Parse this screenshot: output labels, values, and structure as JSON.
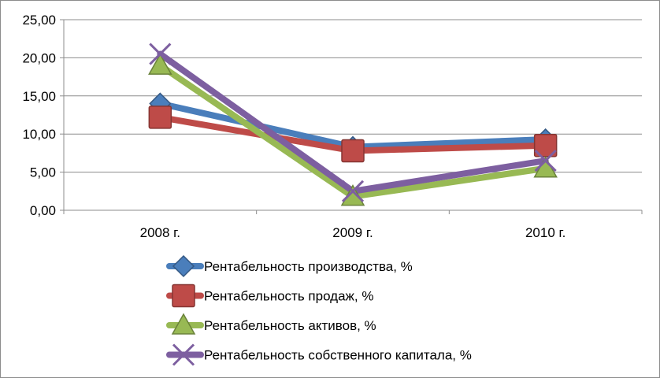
{
  "chart_data": {
    "type": "line",
    "title": "",
    "xlabel": "",
    "ylabel": "",
    "categories": [
      "2008 г.",
      "2009 г.",
      "2010 г."
    ],
    "ylim": [
      0,
      25
    ],
    "yticks": [
      "0,00",
      "5,00",
      "10,00",
      "15,00",
      "20,00",
      "25,00"
    ],
    "grid": "horizontal",
    "legend_position": "bottom",
    "series": [
      {
        "name": "Рентабельность производства, %",
        "values": [
          14.0,
          8.3,
          9.3
        ],
        "color": "#4a7ebb",
        "marker": "diamond"
      },
      {
        "name": "Рентабельность продаж, %",
        "values": [
          12.2,
          7.8,
          8.5
        ],
        "color": "#be4b48",
        "marker": "square"
      },
      {
        "name": "Рентабельность активов, %",
        "values": [
          19.0,
          1.8,
          5.5
        ],
        "color": "#98b954",
        "marker": "triangle"
      },
      {
        "name": "Рентабельность собственного капитала, %",
        "values": [
          20.5,
          2.5,
          6.5
        ],
        "color": "#7d5fa0",
        "marker": "x"
      }
    ]
  }
}
